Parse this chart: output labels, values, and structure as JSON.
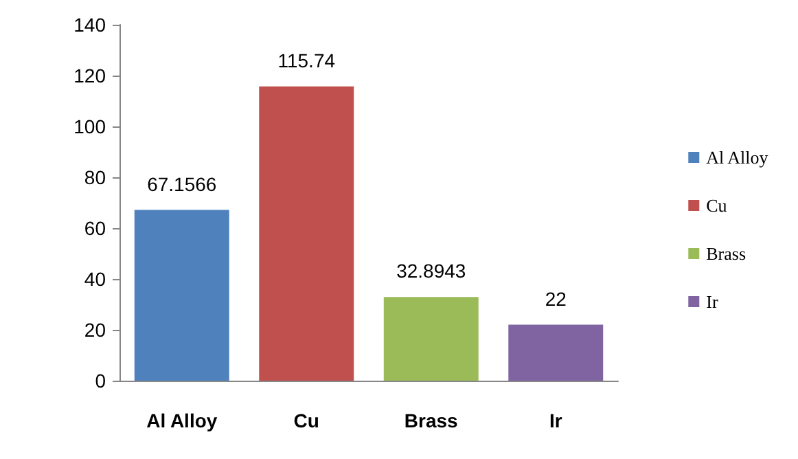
{
  "chart_data": {
    "type": "bar",
    "categories": [
      "Al Alloy",
      "Cu",
      "Brass",
      "Ir"
    ],
    "stacked": true,
    "series": [
      {
        "name": "Al Alloy",
        "color": "#4f81bd",
        "values": [
          67.1566,
          null,
          null,
          null
        ]
      },
      {
        "name": "Cu",
        "color": "#c0504d",
        "values": [
          null,
          115.74,
          null,
          null
        ]
      },
      {
        "name": "Brass",
        "color": "#9bbb59",
        "values": [
          null,
          null,
          32.8943,
          null
        ]
      },
      {
        "name": "Ir",
        "color": "#8064a2",
        "values": [
          null,
          null,
          null,
          22
        ]
      }
    ],
    "ylim": [
      0,
      140
    ],
    "yticks": [
      0,
      20,
      40,
      60,
      80,
      100,
      120,
      140
    ],
    "grid": false,
    "legend": "right",
    "data_labels": true
  }
}
